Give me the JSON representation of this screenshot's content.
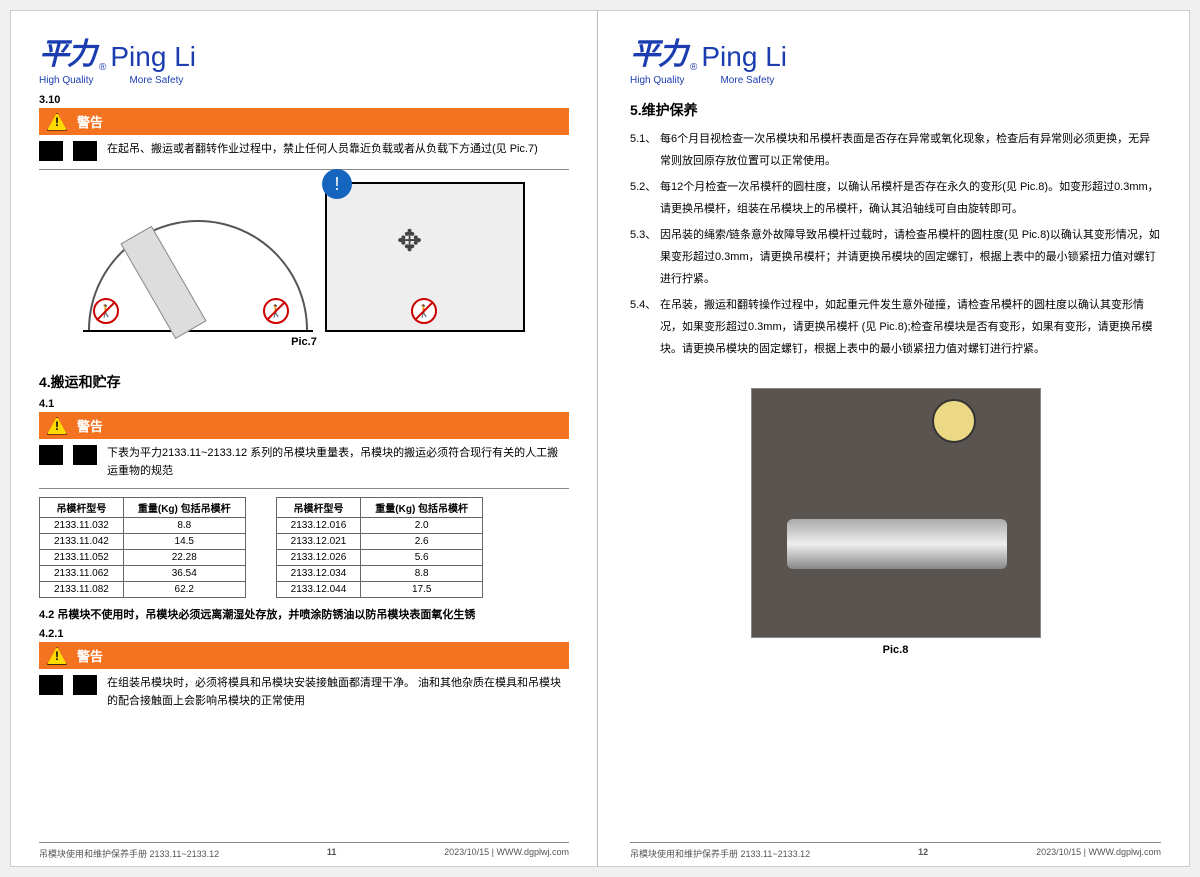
{
  "brand": {
    "cn": "平力",
    "en": "Ping Li",
    "tag1": "High Quality",
    "tag2": "More Safety",
    "reg": "®"
  },
  "colors": {
    "brand": "#1c3db0",
    "warning_bg": "#f37321",
    "warning_triangle": "#fddb00",
    "prohibit": "#c00",
    "info_circle": "#1565c0"
  },
  "left": {
    "sec310": "3.10",
    "warn_label": "警告",
    "warn1_text": "在起吊、搬运或者翻转作业过程中，禁止任何人员靠近负载或者从负载下方通过(见 Pic.7)",
    "pic7_label": "Pic.7",
    "sec4_title": "4.搬运和贮存",
    "sec41": "4.1",
    "warn2_text": "下表为平力2133.11~2133.12 系列的吊模块重量表，吊模块的搬运必须符合现行有关的人工搬运重物的规范",
    "table_h1": "吊模杆型号",
    "table_h2": "重量(Kg)\n包括吊模杆",
    "table1": [
      [
        "2133.11.032",
        "8.8"
      ],
      [
        "2133.11.042",
        "14.5"
      ],
      [
        "2133.11.052",
        "22.28"
      ],
      [
        "2133.11.062",
        "36.54"
      ],
      [
        "2133.11.082",
        "62.2"
      ]
    ],
    "table2": [
      [
        "2133.12.016",
        "2.0"
      ],
      [
        "2133.12.021",
        "2.6"
      ],
      [
        "2133.12.026",
        "5.6"
      ],
      [
        "2133.12.034",
        "8.8"
      ],
      [
        "2133.12.044",
        "17.5"
      ]
    ],
    "sec42": "4.2 吊模块不使用时，吊模块必须远离潮湿处存放，并喷涂防锈油以防吊模块表面氧化生锈",
    "sec421": "4.2.1",
    "warn3_text": "在组装吊模块时，必须将模具和吊模块安装接触面都清理干净。\n油和其他杂质在模具和吊模块的配合接触面上会影响吊模块的正常使用"
  },
  "right": {
    "sec5_title": "5.维护保养",
    "items": [
      {
        "n": "5.1、",
        "t": "每6个月目视检查一次吊模块和吊模杆表面是否存在异常或氧化现象，检查后有异常则必须更换，无异常则放回原存放位置可以正常使用。"
      },
      {
        "n": "5.2、",
        "t": "每12个月检查一次吊模杆的圆柱度，以确认吊模杆是否存在永久的变形(见 Pic.8)。如变形超过0.3mm，请更换吊模杆，组装在吊模块上的吊模杆，确认其沿轴线可自由旋转即可。"
      },
      {
        "n": "5.3、",
        "t": "因吊装的绳索/链条意外故障导致吊模杆过载时，请检查吊模杆的圆柱度(见 Pic.8)以确认其变形情况，如果变形超过0.3mm，请更换吊模杆；并请更换吊模块的固定螺钉，根据上表中的最小锁紧扭力值对螺钉进行拧紧。"
      },
      {
        "n": "5.4、",
        "t": "在吊装，搬运和翻转操作过程中，如起重元件发生意外碰撞，请检查吊模杆的圆柱度以确认其变形情况，如果变形超过0.3mm，请更换吊模杆 (见 Pic.8);检查吊模块是否有变形，如果有变形，请更换吊模块。请更换吊模块的固定螺钉，根据上表中的最小锁紧扭力值对螺钉进行拧紧。"
      }
    ],
    "pic8_label": "Pic.8"
  },
  "footer": {
    "doc": "吊模块使用和维护保养手册 2133.11~2133.12",
    "page_l": "11",
    "page_r": "12",
    "date_url": "2023/10/15 | WWW.dgplwj.com"
  }
}
